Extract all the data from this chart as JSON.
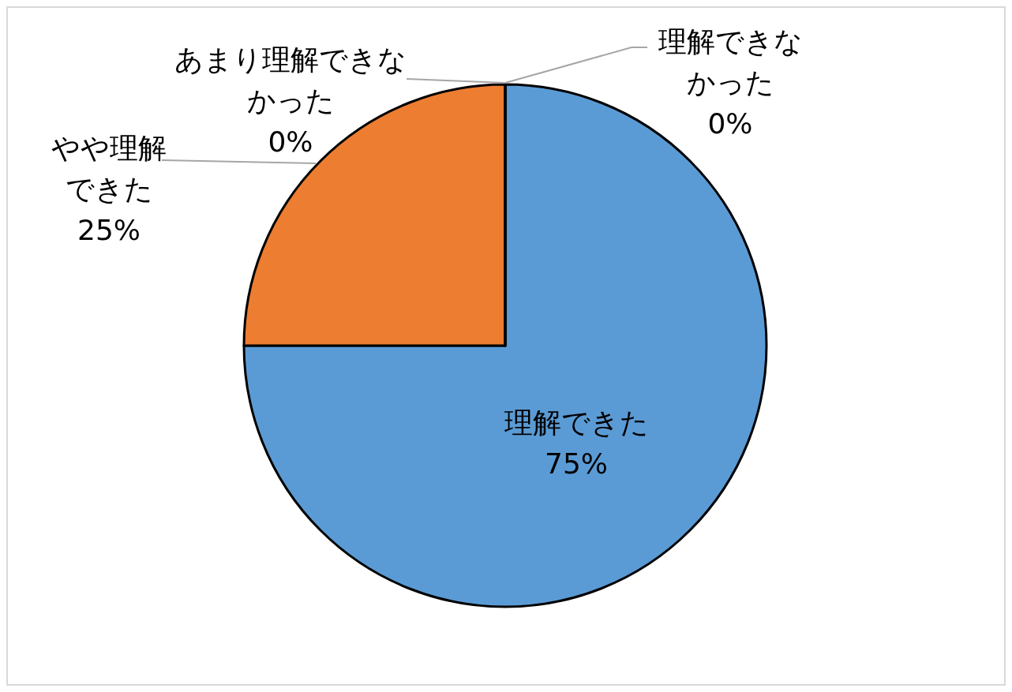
{
  "chart_data": {
    "type": "pie",
    "categories": [
      "理解できた",
      "やや理解できた",
      "あまり理解できなかった",
      "理解できなかった"
    ],
    "values": [
      75,
      25,
      0,
      0
    ],
    "value_labels": [
      "75%",
      "25%",
      "0%",
      "0%"
    ],
    "colors": [
      "#5b9bd5",
      "#ed7d31",
      "#a5a5a5",
      "#ffc000"
    ]
  }
}
